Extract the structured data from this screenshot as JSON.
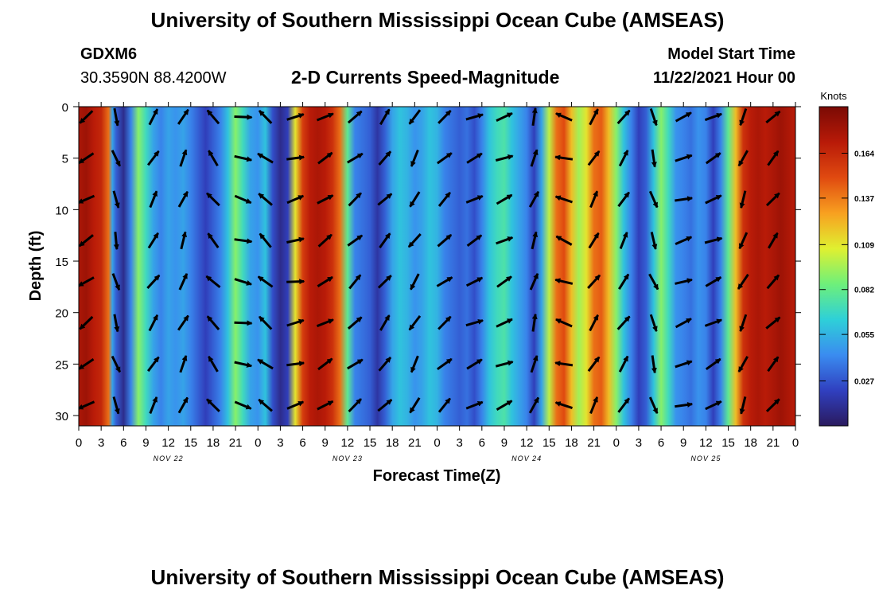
{
  "header": {
    "title": "University of Southern Mississippi Ocean Cube (AMSEAS)",
    "station": "GDXM6",
    "coords": "30.3590N  88.4200W",
    "subtitle": "2-D Currents Speed-Magnitude",
    "model_start_label": "Model Start Time",
    "model_start_value": "11/22/2021 Hour 00"
  },
  "footer": {
    "title": "University of Southern Mississippi Ocean Cube (AMSEAS)"
  },
  "colors": {
    "background": "#ffffff",
    "colormap": [
      "#2a1a5e",
      "#3040c0",
      "#3a8cf0",
      "#2ed0d8",
      "#6ef07a",
      "#e0f030",
      "#f8a020",
      "#e04a10",
      "#b81a08",
      "#7a0a04"
    ]
  },
  "chart_data": {
    "type": "heatmap",
    "title": "2-D Currents Speed-Magnitude",
    "xlabel": "Forecast Time(Z)",
    "ylabel": "Depth (ft)",
    "xlim": [
      0,
      96
    ],
    "ylim": [
      0,
      31
    ],
    "x_ticks": [
      0,
      3,
      6,
      9,
      12,
      15,
      18,
      21,
      24,
      27,
      30,
      33,
      36,
      39,
      42,
      45,
      48,
      51,
      54,
      57,
      60,
      63,
      66,
      69,
      72,
      75,
      78,
      81,
      84,
      87,
      90,
      93,
      96
    ],
    "x_tick_labels": [
      "0",
      "3",
      "6",
      "9",
      "12",
      "15",
      "18",
      "21",
      "0",
      "3",
      "6",
      "9",
      "12",
      "15",
      "18",
      "21",
      "0",
      "3",
      "6",
      "9",
      "12",
      "15",
      "18",
      "21",
      "0",
      "3",
      "6",
      "9",
      "12",
      "15",
      "18",
      "21",
      "0"
    ],
    "y_ticks": [
      0,
      5,
      10,
      15,
      20,
      25,
      30
    ],
    "y_tick_labels": [
      "0",
      "5",
      "10",
      "15",
      "20",
      "25",
      "30"
    ],
    "date_labels": [
      {
        "x": 12,
        "text": "NOV 22"
      },
      {
        "x": 36,
        "text": "NOV 23"
      },
      {
        "x": 60,
        "text": "NOV 24"
      },
      {
        "x": 84,
        "text": "NOV 25"
      }
    ],
    "colorbar": {
      "label": "Knots",
      "range": [
        0,
        0.192
      ],
      "ticks": [
        0.027,
        0.055,
        0.082,
        0.109,
        0.137,
        0.164
      ],
      "tick_labels": [
        "0.027",
        "0.055",
        "0.082",
        "0.109",
        "0.137",
        "0.164"
      ]
    },
    "speed_profile": [
      [
        0,
        0.175
      ],
      [
        1,
        0.18
      ],
      [
        2,
        0.17
      ],
      [
        3,
        0.165
      ],
      [
        4,
        0.14
      ],
      [
        4.5,
        0.05
      ],
      [
        5,
        0.03
      ],
      [
        6,
        0.01
      ],
      [
        7,
        0.04
      ],
      [
        8,
        0.09
      ],
      [
        9,
        0.07
      ],
      [
        10,
        0.05
      ],
      [
        11,
        0.04
      ],
      [
        12,
        0.05
      ],
      [
        13,
        0.045
      ],
      [
        14,
        0.05
      ],
      [
        15,
        0.04
      ],
      [
        16,
        0.03
      ],
      [
        17,
        0.02
      ],
      [
        18,
        0.03
      ],
      [
        19,
        0.04
      ],
      [
        20,
        0.06
      ],
      [
        21,
        0.09
      ],
      [
        22,
        0.07
      ],
      [
        23,
        0.05
      ],
      [
        24,
        0.045
      ],
      [
        25,
        0.06
      ],
      [
        26,
        0.025
      ],
      [
        27,
        0.01
      ],
      [
        28,
        0.02
      ],
      [
        29,
        0.11
      ],
      [
        30,
        0.155
      ],
      [
        31,
        0.17
      ],
      [
        32,
        0.175
      ],
      [
        33,
        0.17
      ],
      [
        34,
        0.16
      ],
      [
        35,
        0.14
      ],
      [
        36,
        0.08
      ],
      [
        37,
        0.04
      ],
      [
        38,
        0.035
      ],
      [
        39,
        0.03
      ],
      [
        40,
        0.015
      ],
      [
        41,
        0.03
      ],
      [
        42,
        0.05
      ],
      [
        43,
        0.06
      ],
      [
        44,
        0.055
      ],
      [
        45,
        0.045
      ],
      [
        46,
        0.05
      ],
      [
        47,
        0.06
      ],
      [
        48,
        0.055
      ],
      [
        49,
        0.04
      ],
      [
        50,
        0.035
      ],
      [
        51,
        0.03
      ],
      [
        52,
        0.035
      ],
      [
        53,
        0.025
      ],
      [
        54,
        0.04
      ],
      [
        55,
        0.06
      ],
      [
        56,
        0.07
      ],
      [
        57,
        0.075
      ],
      [
        58,
        0.06
      ],
      [
        59,
        0.05
      ],
      [
        60,
        0.04
      ],
      [
        61,
        0.02
      ],
      [
        62,
        0.05
      ],
      [
        63,
        0.1
      ],
      [
        64,
        0.14
      ],
      [
        65,
        0.15
      ],
      [
        66,
        0.12
      ],
      [
        67,
        0.095
      ],
      [
        68,
        0.11
      ],
      [
        69,
        0.14
      ],
      [
        70,
        0.145
      ],
      [
        71,
        0.12
      ],
      [
        72,
        0.09
      ],
      [
        73,
        0.06
      ],
      [
        74,
        0.04
      ],
      [
        75,
        0.02
      ],
      [
        76,
        0.03
      ],
      [
        77,
        0.06
      ],
      [
        78,
        0.09
      ],
      [
        79,
        0.07
      ],
      [
        80,
        0.045
      ],
      [
        81,
        0.04
      ],
      [
        82,
        0.035
      ],
      [
        83,
        0.045
      ],
      [
        84,
        0.04
      ],
      [
        85,
        0.02
      ],
      [
        86,
        0.04
      ],
      [
        87,
        0.08
      ],
      [
        88,
        0.12
      ],
      [
        89,
        0.16
      ],
      [
        90,
        0.17
      ],
      [
        91,
        0.175
      ],
      [
        92,
        0.17
      ],
      [
        93,
        0.175
      ],
      [
        94,
        0.18
      ],
      [
        95,
        0.175
      ],
      [
        96,
        0.17
      ]
    ],
    "vector_columns": [
      {
        "x": 1,
        "u": -0.9,
        "v": -0.6
      },
      {
        "x": 5,
        "u": 0.25,
        "v": -0.9
      },
      {
        "x": 10,
        "u": 0.5,
        "v": 0.8
      },
      {
        "x": 14,
        "u": 0.4,
        "v": 0.9
      },
      {
        "x": 18,
        "u": -0.6,
        "v": 0.7
      },
      {
        "x": 22,
        "u": 0.9,
        "v": -0.2
      },
      {
        "x": 25,
        "u": -0.7,
        "v": 0.6
      },
      {
        "x": 29,
        "u": 0.9,
        "v": 0.2
      },
      {
        "x": 33,
        "u": 0.8,
        "v": 0.5
      },
      {
        "x": 37,
        "u": 0.7,
        "v": 0.6
      },
      {
        "x": 41,
        "u": 0.6,
        "v": 0.7
      },
      {
        "x": 45,
        "u": -0.5,
        "v": -0.8
      },
      {
        "x": 49,
        "u": 0.7,
        "v": 0.6
      },
      {
        "x": 53,
        "u": 0.8,
        "v": 0.4
      },
      {
        "x": 57,
        "u": 0.85,
        "v": 0.4
      },
      {
        "x": 61,
        "u": 0.3,
        "v": 0.9
      },
      {
        "x": 65,
        "u": -0.9,
        "v": 0.3
      },
      {
        "x": 69,
        "u": 0.5,
        "v": 0.8
      },
      {
        "x": 73,
        "u": 0.5,
        "v": 0.8
      },
      {
        "x": 77,
        "u": 0.3,
        "v": -0.9
      },
      {
        "x": 81,
        "u": 0.9,
        "v": 0.3
      },
      {
        "x": 85,
        "u": 0.85,
        "v": 0.4
      },
      {
        "x": 89,
        "u": -0.4,
        "v": -0.9
      },
      {
        "x": 93,
        "u": 0.6,
        "v": 0.7
      }
    ],
    "vector_depths": [
      1,
      5,
      9,
      13,
      17,
      21,
      25,
      29
    ]
  }
}
